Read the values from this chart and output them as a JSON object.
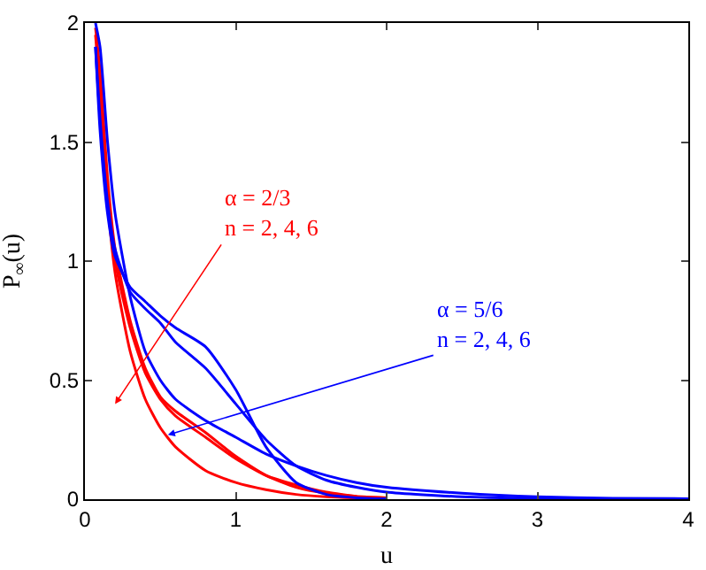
{
  "chart_data": {
    "type": "line",
    "xlabel": "u",
    "ylabel": "P$_{∞}$(u)",
    "x": [
      0.07,
      0.1,
      0.15,
      0.2,
      0.3,
      0.4,
      0.5,
      0.6,
      0.8,
      1.0,
      1.2,
      1.4,
      1.6,
      1.8,
      2,
      2.5,
      3,
      3.5,
      4
    ],
    "series": [
      {
        "color": "#ff0000",
        "values": [
          1.95,
          1.7,
          1.25,
          0.95,
          0.62,
          0.42,
          0.3,
          0.22,
          0.12,
          0.07,
          0.04,
          0.02,
          0.01,
          0.005,
          0.003,
          null,
          null,
          null,
          null
        ]
      },
      {
        "color": "#ff0000",
        "values": [
          1.98,
          1.8,
          1.35,
          1.05,
          0.75,
          0.55,
          0.43,
          0.37,
          0.28,
          0.18,
          0.1,
          0.05,
          0.025,
          0.012,
          0.006,
          null,
          null,
          null,
          null
        ]
      },
      {
        "color": "#ff0000",
        "values": [
          null,
          1.75,
          1.3,
          1.0,
          0.72,
          0.53,
          0.42,
          0.35,
          0.26,
          0.17,
          0.1,
          0.06,
          0.03,
          0.012,
          null,
          null,
          null,
          null,
          null
        ]
      },
      {
        "color": "#0000ff",
        "values": [
          1.9,
          1.55,
          1.2,
          1.02,
          0.89,
          0.83,
          0.77,
          0.72,
          0.64,
          0.46,
          0.22,
          0.07,
          0.02,
          0.006,
          0.002,
          null,
          null,
          null,
          null
        ]
      },
      {
        "color": "#0000ff",
        "values": [
          1.9,
          1.6,
          1.25,
          1.05,
          0.87,
          0.8,
          0.74,
          0.66,
          0.55,
          0.4,
          0.25,
          0.14,
          0.08,
          0.05,
          0.03,
          0.01,
          0.003,
          0.001,
          0
        ]
      },
      {
        "color": "#0000ff",
        "values": [
          2.0,
          1.9,
          1.5,
          1.2,
          0.85,
          0.62,
          0.5,
          0.42,
          0.33,
          0.26,
          0.19,
          0.14,
          0.1,
          0.07,
          0.05,
          0.025,
          0.01,
          0.004,
          0.002
        ]
      }
    ],
    "xlim": [
      0,
      4
    ],
    "xticks": [
      0,
      1,
      2,
      3,
      4
    ],
    "ylim": [
      0,
      2
    ],
    "yticks": [
      0,
      0.5,
      1,
      1.5,
      2
    ],
    "grid": false,
    "marker": "none",
    "line_style": "solid",
    "annotations": [
      "α = 2/3\nn = 2, 4, 6",
      "α = 5/6\nn = 2, 4, 6"
    ]
  }
}
